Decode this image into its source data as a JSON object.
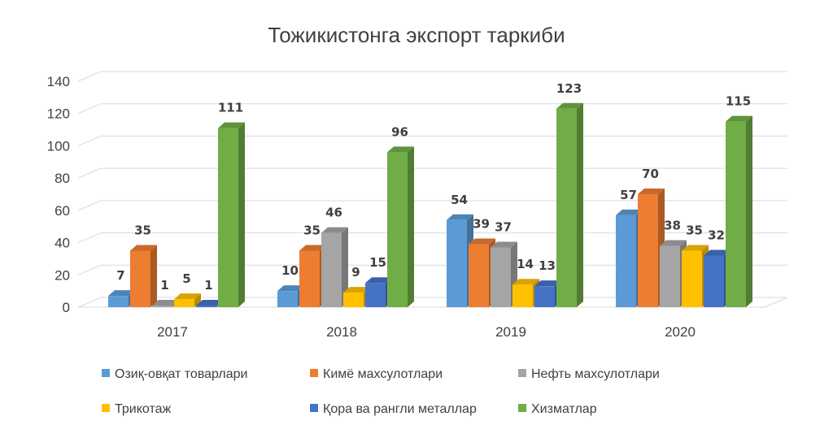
{
  "chart_data": {
    "type": "bar",
    "title": "Тожикистонга экспорт таркиби",
    "categories": [
      "2017",
      "2018",
      "2019",
      "2020"
    ],
    "ylim": [
      0,
      140
    ],
    "yticks": [
      "0",
      "20",
      "40",
      "60",
      "80",
      "100",
      "120",
      "140"
    ],
    "ytick_values": [
      0,
      20,
      40,
      60,
      80,
      100,
      120,
      140
    ],
    "grid": true,
    "legend_position": "bottom",
    "series": [
      {
        "name": "Озиқ-овқат товарлари",
        "color": "#5b9bd5",
        "values": [
          7,
          10,
          54,
          57
        ],
        "labels": [
          "7",
          "10",
          "54",
          "57"
        ]
      },
      {
        "name": "Кимё махсулотлари",
        "color": "#ed7d31",
        "values": [
          35,
          35,
          39,
          70
        ],
        "labels": [
          "35",
          "35",
          "39",
          "70"
        ]
      },
      {
        "name": "Нефть махсулотлари",
        "color": "#a5a5a5",
        "values": [
          1,
          46,
          37,
          38
        ],
        "labels": [
          "1",
          "46",
          "37",
          "38"
        ]
      },
      {
        "name": "Трикотаж",
        "color": "#ffc000",
        "values": [
          5,
          9,
          14,
          35
        ],
        "labels": [
          "5",
          "9",
          "14",
          "35"
        ]
      },
      {
        "name": "Қора ва рангли металлар",
        "color": "#4472c4",
        "values": [
          1,
          15,
          13,
          32
        ],
        "labels": [
          "1",
          "15",
          "13",
          "32"
        ]
      },
      {
        "name": "Хизматлар",
        "color": "#70ad47",
        "values": [
          111,
          96,
          123,
          115
        ],
        "labels": [
          "111",
          "96",
          "123",
          "115"
        ]
      }
    ]
  }
}
